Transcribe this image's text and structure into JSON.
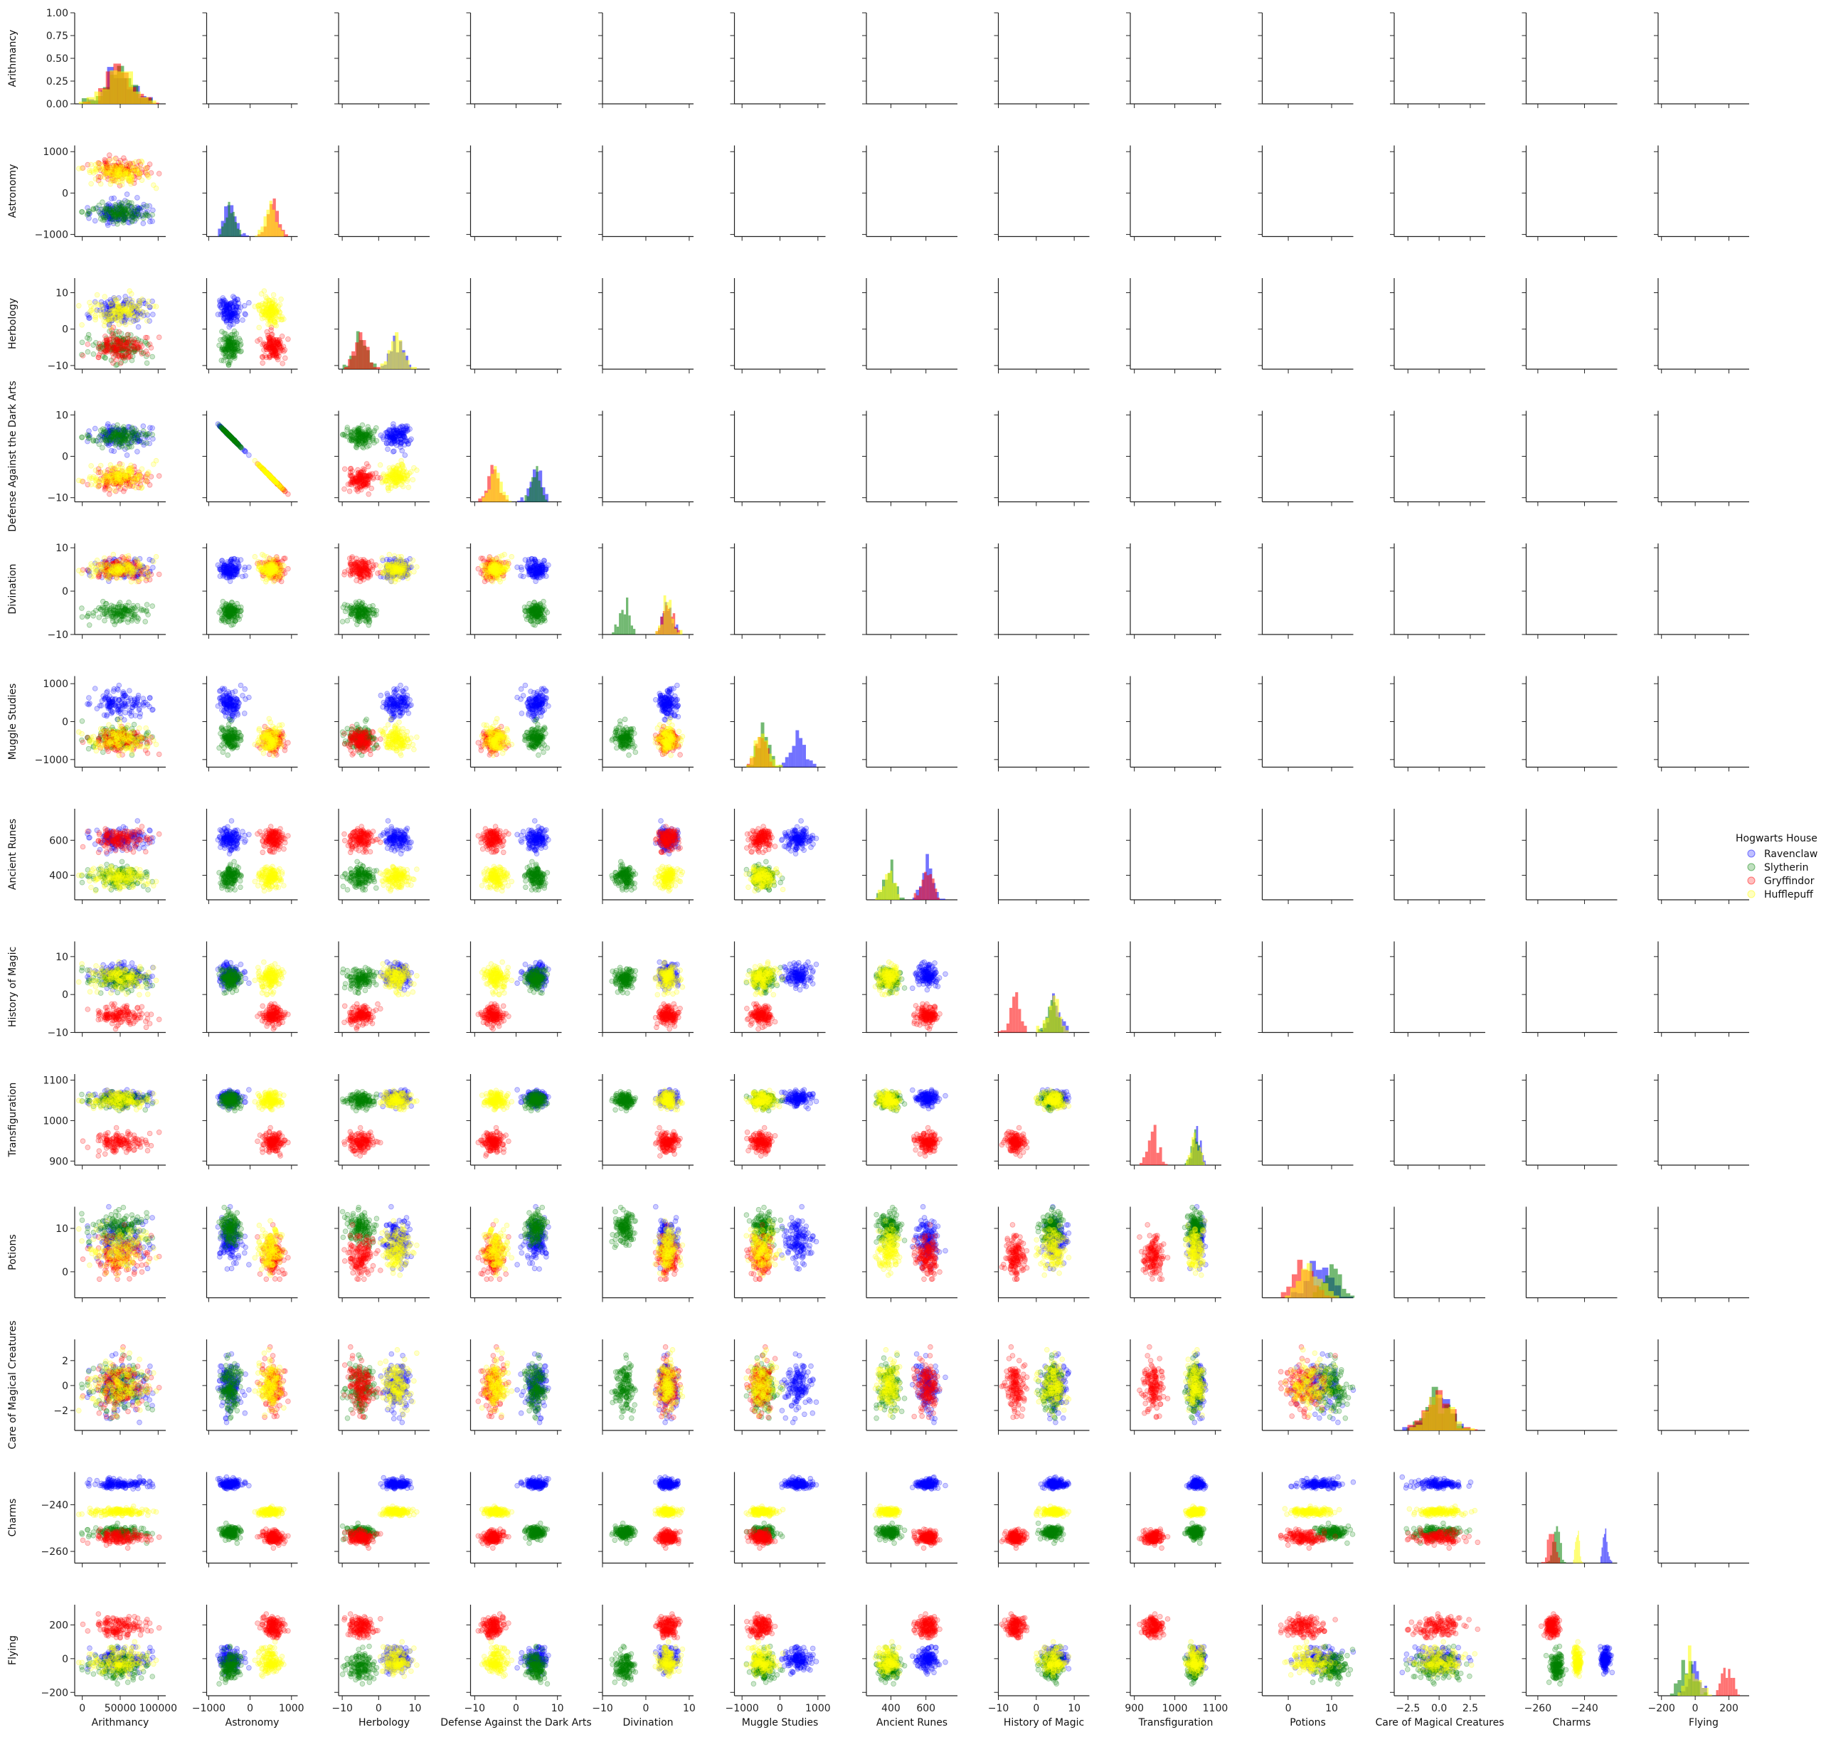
{
  "chart_data": {
    "type": "scatter",
    "layout": "pairplot-lower-triangle",
    "variables": [
      "Arithmancy",
      "Astronomy",
      "Herbology",
      "Defense Against the Dark Arts",
      "Divination",
      "Muggle Studies",
      "Ancient Runes",
      "History of Magic",
      "Transfiguration",
      "Potions",
      "Care of Magical Creatures",
      "Charms",
      "Flying"
    ],
    "ranges": [
      [
        -10000,
        110000
      ],
      [
        -1050,
        1150
      ],
      [
        -11,
        14
      ],
      [
        -11,
        11
      ],
      [
        -10,
        11
      ],
      [
        -1200,
        1200
      ],
      [
        260,
        780
      ],
      [
        -10,
        14
      ],
      [
        890,
        1115
      ],
      [
        -6,
        15
      ],
      [
        -3.6,
        3.7
      ],
      [
        -265,
        -226
      ],
      [
        -220,
        320
      ]
    ],
    "ticks": [
      {
        "values": [
          0,
          50000,
          100000
        ],
        "labels": [
          "0",
          "50000",
          "100000"
        ]
      },
      {
        "values": [
          -1000,
          0,
          1000
        ],
        "labels": [
          "−1000",
          "0",
          "1000"
        ]
      },
      {
        "values": [
          -10,
          0,
          10
        ],
        "labels": [
          "−10",
          "0",
          "10"
        ]
      },
      {
        "values": [
          -10,
          0,
          10
        ],
        "labels": [
          "−10",
          "0",
          "10"
        ]
      },
      {
        "values": [
          -10,
          0,
          10
        ],
        "labels": [
          "−10",
          "0",
          "10"
        ]
      },
      {
        "values": [
          -1000,
          0,
          1000
        ],
        "labels": [
          "−1000",
          "0",
          "1000"
        ]
      },
      {
        "values": [
          400,
          600
        ],
        "labels": [
          "400",
          "600"
        ]
      },
      {
        "values": [
          -10,
          0,
          10
        ],
        "labels": [
          "−10",
          "0",
          "10"
        ]
      },
      {
        "values": [
          900,
          1000,
          1100
        ],
        "labels": [
          "900",
          "1000",
          "1100"
        ]
      },
      {
        "values": [
          0,
          10
        ],
        "labels": [
          "0",
          "10"
        ]
      },
      {
        "values": [
          -2.5,
          0.0,
          2.5
        ],
        "labels": [
          "−2.5",
          "0.0",
          "2.5"
        ]
      },
      {
        "values": [
          -260,
          -240
        ],
        "labels": [
          "−260",
          "−240"
        ]
      },
      {
        "values": [
          -200,
          0,
          200
        ],
        "labels": [
          "−200",
          "0",
          "200"
        ]
      }
    ],
    "row_ticks": [
      {
        "values": [
          0.0,
          0.25,
          0.5,
          0.75,
          1.0
        ],
        "labels": [
          "0.00",
          "0.25",
          "0.50",
          "0.75",
          "1.00"
        ]
      },
      {
        "values": [
          -1000,
          0,
          1000
        ],
        "labels": [
          "−1000",
          "0",
          "1000"
        ]
      },
      {
        "values": [
          -10,
          0,
          10
        ],
        "labels": [
          "−10",
          "0",
          "10"
        ]
      },
      {
        "values": [
          -10,
          0,
          10
        ],
        "labels": [
          "−10",
          "0",
          "10"
        ]
      },
      {
        "values": [
          -10,
          0,
          10
        ],
        "labels": [
          "−10",
          "0",
          "10"
        ]
      },
      {
        "values": [
          -1000,
          0,
          1000
        ],
        "labels": [
          "−1000",
          "0",
          "1000"
        ]
      },
      {
        "values": [
          400,
          600
        ],
        "labels": [
          "400",
          "600"
        ]
      },
      {
        "values": [
          -10,
          0,
          10
        ],
        "labels": [
          "−10",
          "0",
          "10"
        ]
      },
      {
        "values": [
          900,
          1000,
          1100
        ],
        "labels": [
          "900",
          "1000",
          "1100"
        ]
      },
      {
        "values": [
          0,
          10
        ],
        "labels": [
          "0",
          "10"
        ]
      },
      {
        "values": [
          -2,
          0,
          2
        ],
        "labels": [
          "−2",
          "0",
          "2"
        ]
      },
      {
        "values": [
          -260,
          -240
        ],
        "labels": [
          "−260",
          "−240"
        ]
      },
      {
        "values": [
          -200,
          0,
          200
        ],
        "labels": [
          "−200",
          "0",
          "200"
        ]
      }
    ],
    "series": [
      {
        "name": "Ravenclaw",
        "color": "#0000ff",
        "means": [
          49000,
          -490,
          5.0,
          5.0,
          5.0,
          480,
          610,
          5.0,
          1055,
          7.5,
          0.0,
          -231,
          0
        ],
        "sds": [
          18000,
          130,
          1.8,
          1.3,
          1.2,
          180,
          30,
          1.5,
          9,
          2.5,
          1.0,
          0.9,
          35
        ]
      },
      {
        "name": "Slytherin",
        "color": "#008000",
        "means": [
          49000,
          -450,
          -5.0,
          4.5,
          -5.0,
          -430,
          390,
          4.0,
          1050,
          10.0,
          0.0,
          -252,
          -40
        ],
        "sds": [
          18000,
          120,
          1.8,
          1.2,
          1.2,
          150,
          30,
          1.5,
          9,
          2.0,
          1.0,
          1.5,
          40
        ]
      },
      {
        "name": "Gryffindor",
        "color": "#ff0000",
        "means": [
          49000,
          550,
          -5.0,
          -5.0,
          5.0,
          -500,
          610,
          -5.5,
          945,
          3.5,
          0.0,
          -254,
          190
        ],
        "sds": [
          18000,
          130,
          1.8,
          1.3,
          1.2,
          160,
          30,
          1.5,
          12,
          2.2,
          1.0,
          1.5,
          30
        ]
      },
      {
        "name": "Hufflepuff",
        "color": "#ffff00",
        "means": [
          49000,
          480,
          5.0,
          -4.8,
          5.0,
          -470,
          390,
          4.5,
          1050,
          5.0,
          0.0,
          -243,
          -15
        ],
        "sds": [
          18000,
          130,
          1.8,
          1.3,
          1.2,
          180,
          30,
          1.8,
          10,
          2.5,
          1.0,
          0.8,
          40
        ]
      }
    ],
    "legend": {
      "title": "Hogwarts House",
      "position": "right"
    }
  }
}
